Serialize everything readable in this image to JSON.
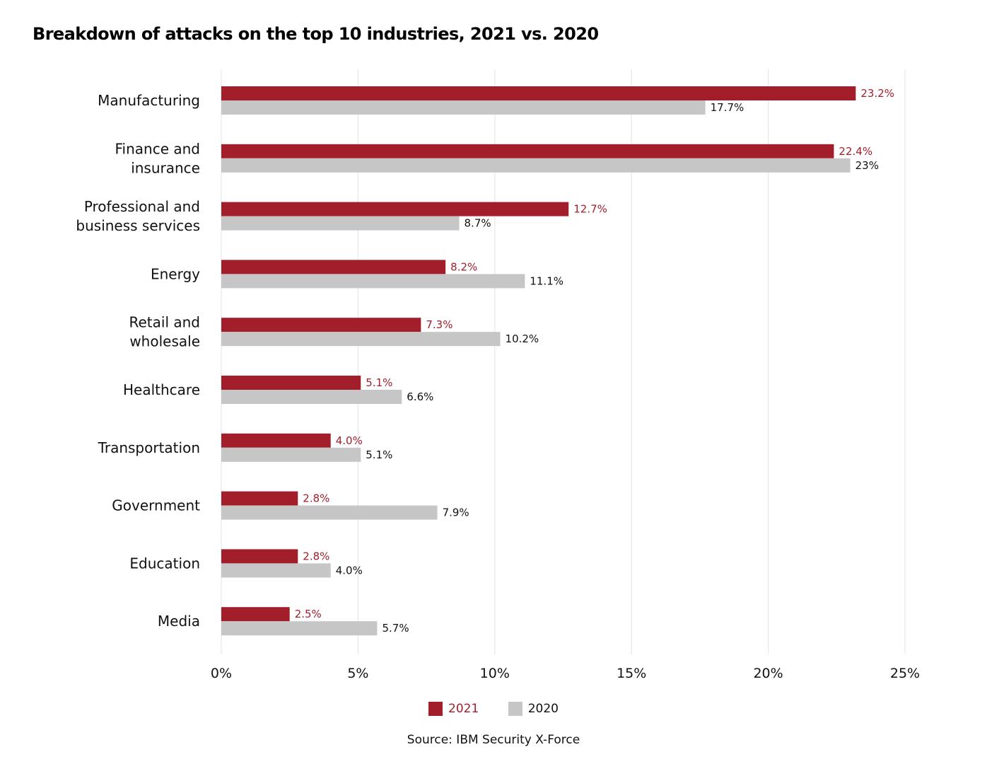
{
  "chart_data": {
    "type": "bar",
    "orientation": "horizontal",
    "title": "Breakdown of attacks on the top 10 industries, 2021 vs. 2020",
    "categories": [
      [
        "Manufacturing"
      ],
      [
        "Finance and",
        "insurance"
      ],
      [
        "Professional and",
        "business services"
      ],
      [
        "Energy"
      ],
      [
        "Retail and",
        "wholesale"
      ],
      [
        "Healthcare"
      ],
      [
        "Transportation"
      ],
      [
        "Government"
      ],
      [
        "Education"
      ],
      [
        "Media"
      ]
    ],
    "series": [
      {
        "name": "2021",
        "color": "#a31e2b",
        "values": [
          23.2,
          22.4,
          12.7,
          8.2,
          7.3,
          5.1,
          4.0,
          2.8,
          2.8,
          2.5
        ],
        "labels": [
          "23.2%",
          "22.4%",
          "12.7%",
          "8.2%",
          "7.3%",
          "5.1%",
          "4.0%",
          "2.8%",
          "2.8%",
          "2.5%"
        ]
      },
      {
        "name": "2020",
        "color": "#c6c6c6",
        "values": [
          17.7,
          23,
          8.7,
          11.1,
          10.2,
          6.6,
          5.1,
          7.9,
          4.0,
          5.7
        ],
        "labels": [
          "17.7%",
          "23%",
          "8.7%",
          "11.1%",
          "10.2%",
          "6.6%",
          "5.1%",
          "7.9%",
          "4.0%",
          "5.7%"
        ]
      }
    ],
    "xlim": [
      0,
      25
    ],
    "xticks": [
      0,
      5,
      10,
      15,
      20,
      25
    ],
    "xtick_labels": [
      "0%",
      "5%",
      "10%",
      "15%",
      "20%",
      "25%"
    ],
    "xlabel": "",
    "ylabel": "",
    "grid": "vertical",
    "legend": "bottom-center"
  },
  "legend": {
    "items": [
      {
        "label": "2021",
        "color": "#a31e2b",
        "text_color": "#a31e2b"
      },
      {
        "label": "2020",
        "color": "#c6c6c6",
        "text_color": "#111111"
      }
    ]
  },
  "source": "Source: IBM Security X-Force"
}
